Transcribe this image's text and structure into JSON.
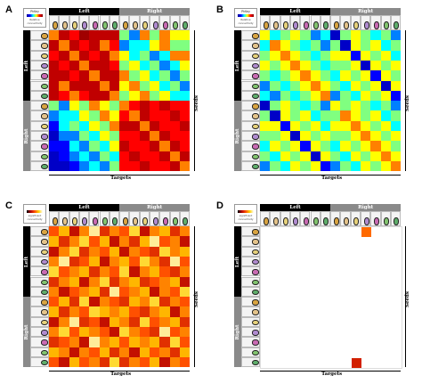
{
  "colors": {
    "left_header": "#000000",
    "right_header": "#8a8a8a",
    "high_color": "#ff0000",
    "scale_jet": [
      "#00008f",
      "#0000ff",
      "#00ffff",
      "#ffff00",
      "#ff0000",
      "#800000"
    ],
    "scale_hot": [
      "#000000",
      "#b40000",
      "#ff5000",
      "#ffd000",
      "#ffffff"
    ]
  },
  "header": {
    "left_label": "Left",
    "right_label": "Right",
    "targets_label": "Targets",
    "seeds_label": "Seeds"
  },
  "panels": [
    {
      "id": "A",
      "legend": {
        "title": "PhKey",
        "sub1": "Relative",
        "sub2": "connectivity",
        "scale": "jet"
      },
      "chart_data": {
        "type": "heatmap",
        "rows": 14,
        "cols": 14,
        "colormap": "jet",
        "row_groups": [
          "Left",
          "Right"
        ],
        "col_groups": [
          "Left",
          "Right"
        ],
        "values": [
          [
            0.7,
            0.9,
            0.8,
            0.95,
            0.9,
            0.9,
            0.9,
            0.5,
            0.3,
            0.7,
            0.5,
            0.7,
            0.6,
            0.6
          ],
          [
            0.9,
            0.7,
            0.9,
            0.8,
            0.9,
            0.7,
            0.8,
            0.3,
            0.4,
            0.4,
            0.6,
            0.7,
            0.5,
            0.5
          ],
          [
            0.8,
            0.9,
            0.7,
            0.9,
            0.8,
            0.9,
            0.7,
            0.6,
            0.4,
            0.5,
            0.3,
            0.4,
            0.7,
            0.7
          ],
          [
            0.9,
            0.8,
            0.9,
            0.7,
            0.9,
            0.9,
            0.8,
            0.5,
            0.6,
            0.4,
            0.5,
            0.3,
            0.4,
            0.6
          ],
          [
            0.9,
            0.9,
            0.8,
            0.9,
            0.7,
            0.9,
            0.9,
            0.7,
            0.5,
            0.6,
            0.4,
            0.5,
            0.3,
            0.5
          ],
          [
            0.9,
            0.7,
            0.9,
            0.9,
            0.9,
            0.7,
            0.9,
            0.6,
            0.7,
            0.5,
            0.6,
            0.4,
            0.5,
            0.3
          ],
          [
            0.9,
            0.8,
            0.7,
            0.8,
            0.9,
            0.9,
            0.7,
            0.5,
            0.6,
            0.7,
            0.5,
            0.6,
            0.4,
            0.4
          ],
          [
            0.5,
            0.3,
            0.6,
            0.5,
            0.7,
            0.6,
            0.5,
            0.7,
            0.8,
            0.9,
            0.8,
            0.9,
            0.8,
            0.8
          ],
          [
            0.3,
            0.4,
            0.4,
            0.6,
            0.5,
            0.7,
            0.6,
            0.8,
            0.7,
            0.9,
            0.8,
            0.8,
            0.9,
            0.8
          ],
          [
            0.2,
            0.4,
            0.5,
            0.4,
            0.6,
            0.5,
            0.7,
            0.9,
            0.9,
            0.7,
            0.9,
            0.8,
            0.8,
            0.9
          ],
          [
            0.1,
            0.3,
            0.3,
            0.5,
            0.4,
            0.6,
            0.5,
            0.8,
            0.8,
            0.9,
            0.7,
            0.9,
            0.8,
            0.8
          ],
          [
            0.2,
            0.2,
            0.4,
            0.3,
            0.5,
            0.4,
            0.6,
            0.9,
            0.8,
            0.8,
            0.9,
            0.7,
            0.9,
            0.8
          ],
          [
            0.1,
            0.2,
            0.3,
            0.4,
            0.3,
            0.5,
            0.4,
            0.8,
            0.9,
            0.8,
            0.8,
            0.9,
            0.7,
            0.9
          ],
          [
            0.1,
            0.1,
            0.2,
            0.3,
            0.4,
            0.3,
            0.5,
            0.8,
            0.8,
            0.9,
            0.8,
            0.8,
            0.9,
            0.7
          ]
        ]
      }
    },
    {
      "id": "B",
      "legend": {
        "title": "PhKey",
        "sub1": "Relative",
        "sub2": "connectivity",
        "scale": "jet"
      },
      "chart_data": {
        "type": "heatmap",
        "rows": 14,
        "cols": 14,
        "colormap": "jet",
        "row_groups": [
          "Left",
          "Right"
        ],
        "col_groups": [
          "Left",
          "Right"
        ],
        "values": [
          [
            0.6,
            0.4,
            0.5,
            0.6,
            0.5,
            0.3,
            0.4,
            0.1,
            0.5,
            0.6,
            0.5,
            0.4,
            0.5,
            0.3
          ],
          [
            0.4,
            0.7,
            0.6,
            0.5,
            0.4,
            0.5,
            0.3,
            0.5,
            0.1,
            0.6,
            0.5,
            0.6,
            0.4,
            0.5
          ],
          [
            0.5,
            0.6,
            0.7,
            0.6,
            0.5,
            0.4,
            0.5,
            0.6,
            0.6,
            0.2,
            0.6,
            0.5,
            0.6,
            0.4
          ],
          [
            0.6,
            0.5,
            0.6,
            0.7,
            0.6,
            0.5,
            0.4,
            0.5,
            0.5,
            0.6,
            0.1,
            0.6,
            0.5,
            0.6
          ],
          [
            0.5,
            0.4,
            0.5,
            0.6,
            0.7,
            0.6,
            0.5,
            0.4,
            0.6,
            0.5,
            0.6,
            0.2,
            0.6,
            0.5
          ],
          [
            0.3,
            0.5,
            0.4,
            0.5,
            0.6,
            0.7,
            0.6,
            0.5,
            0.4,
            0.6,
            0.5,
            0.6,
            0.1,
            0.6
          ],
          [
            0.4,
            0.3,
            0.5,
            0.4,
            0.5,
            0.6,
            0.7,
            0.3,
            0.5,
            0.4,
            0.6,
            0.5,
            0.6,
            0.2
          ],
          [
            0.1,
            0.5,
            0.6,
            0.5,
            0.4,
            0.5,
            0.3,
            0.6,
            0.5,
            0.6,
            0.5,
            0.4,
            0.5,
            0.3
          ],
          [
            0.5,
            0.1,
            0.6,
            0.5,
            0.6,
            0.4,
            0.5,
            0.5,
            0.7,
            0.6,
            0.5,
            0.6,
            0.4,
            0.5
          ],
          [
            0.6,
            0.6,
            0.2,
            0.6,
            0.5,
            0.6,
            0.4,
            0.6,
            0.6,
            0.7,
            0.6,
            0.5,
            0.6,
            0.4
          ],
          [
            0.5,
            0.5,
            0.6,
            0.1,
            0.6,
            0.5,
            0.6,
            0.5,
            0.5,
            0.6,
            0.7,
            0.6,
            0.5,
            0.6
          ],
          [
            0.4,
            0.6,
            0.5,
            0.6,
            0.2,
            0.6,
            0.5,
            0.4,
            0.6,
            0.5,
            0.6,
            0.7,
            0.6,
            0.5
          ],
          [
            0.5,
            0.4,
            0.6,
            0.5,
            0.6,
            0.1,
            0.6,
            0.5,
            0.4,
            0.6,
            0.5,
            0.6,
            0.7,
            0.6
          ],
          [
            0.3,
            0.5,
            0.4,
            0.6,
            0.5,
            0.6,
            0.2,
            0.3,
            0.5,
            0.4,
            0.6,
            0.5,
            0.6,
            0.7
          ]
        ]
      }
    },
    {
      "id": "C",
      "legend": {
        "title": "",
        "sub1": "significant",
        "sub2": "connectivity",
        "scale": "hot"
      },
      "chart_data": {
        "type": "heatmap",
        "rows": 14,
        "cols": 14,
        "colormap": "hot",
        "row_groups": [
          "Left",
          "Right"
        ],
        "col_groups": [
          "Left",
          "Right"
        ],
        "values": [
          [
            0.5,
            0.7,
            0.3,
            0.6,
            0.9,
            0.4,
            0.6,
            0.5,
            0.8,
            0.3,
            0.6,
            0.7,
            0.4,
            0.6
          ],
          [
            0.7,
            0.4,
            0.6,
            0.8,
            0.5,
            0.7,
            0.3,
            0.6,
            0.4,
            0.7,
            0.9,
            0.5,
            0.6,
            0.3
          ],
          [
            0.3,
            0.6,
            0.8,
            0.4,
            0.6,
            0.5,
            0.7,
            0.3,
            0.6,
            0.5,
            0.4,
            0.8,
            0.6,
            0.7
          ],
          [
            0.6,
            0.9,
            0.4,
            0.5,
            0.7,
            0.3,
            0.6,
            0.7,
            0.5,
            0.8,
            0.6,
            0.4,
            0.9,
            0.5
          ],
          [
            0.8,
            0.5,
            0.6,
            0.7,
            0.4,
            0.6,
            0.5,
            0.8,
            0.3,
            0.6,
            0.7,
            0.5,
            0.4,
            0.6
          ],
          [
            0.4,
            0.6,
            0.7,
            0.3,
            0.6,
            0.8,
            0.4,
            0.6,
            0.7,
            0.4,
            0.5,
            0.6,
            0.7,
            0.3
          ],
          [
            0.6,
            0.3,
            0.5,
            0.6,
            0.7,
            0.4,
            0.9,
            0.5,
            0.6,
            0.7,
            0.3,
            0.6,
            0.5,
            0.8
          ],
          [
            0.5,
            0.7,
            0.4,
            0.8,
            0.3,
            0.6,
            0.5,
            0.4,
            0.7,
            0.6,
            0.8,
            0.4,
            0.6,
            0.5
          ],
          [
            0.7,
            0.4,
            0.6,
            0.5,
            0.8,
            0.7,
            0.6,
            0.7,
            0.5,
            0.4,
            0.6,
            0.7,
            0.3,
            0.6
          ],
          [
            0.3,
            0.6,
            0.9,
            0.4,
            0.5,
            0.3,
            0.7,
            0.6,
            0.4,
            0.8,
            0.5,
            0.6,
            0.7,
            0.4
          ],
          [
            0.6,
            0.8,
            0.5,
            0.7,
            0.6,
            0.5,
            0.3,
            0.8,
            0.6,
            0.5,
            0.4,
            0.9,
            0.5,
            0.6
          ],
          [
            0.4,
            0.5,
            0.6,
            0.3,
            0.9,
            0.6,
            0.7,
            0.5,
            0.7,
            0.6,
            0.7,
            0.4,
            0.8,
            0.5
          ],
          [
            0.7,
            0.6,
            0.3,
            0.6,
            0.5,
            0.7,
            0.4,
            0.6,
            0.3,
            0.7,
            0.5,
            0.6,
            0.4,
            0.7
          ],
          [
            0.5,
            0.3,
            0.7,
            0.5,
            0.6,
            0.4,
            0.8,
            0.4,
            0.6,
            0.5,
            0.7,
            0.3,
            0.6,
            0.5
          ]
        ]
      }
    },
    {
      "id": "D",
      "legend": {
        "title": "",
        "sub1": "significant",
        "sub2": "connectivity",
        "scale": "hot"
      },
      "chart_data": {
        "type": "heatmap",
        "rows": 14,
        "cols": 14,
        "colormap": "hot",
        "row_groups": [
          "Left",
          "Right"
        ],
        "col_groups": [
          "Left",
          "Right"
        ],
        "highlighted_cells": [
          {
            "row": 0,
            "col": 10,
            "value": 0.55
          },
          {
            "row": 13,
            "col": 9,
            "value": 0.35
          }
        ]
      }
    }
  ]
}
